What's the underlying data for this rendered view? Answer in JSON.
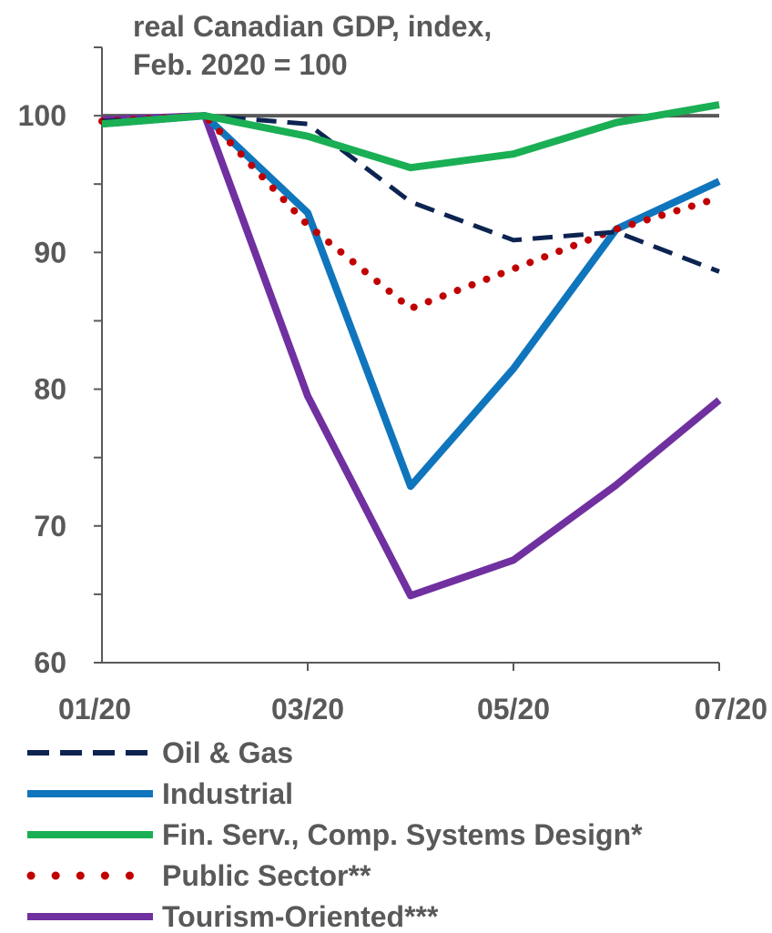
{
  "chart_data": {
    "type": "line",
    "title": "real Canadian GDP, index,",
    "subtitle": "Feb. 2020 = 100",
    "xlabel": "",
    "ylabel": "",
    "x": [
      "01/20",
      "02/20",
      "03/20",
      "04/20",
      "05/20",
      "06/20",
      "07/20"
    ],
    "x_tick_labels": [
      "01/20",
      "03/20",
      "05/20",
      "07/20"
    ],
    "y_tick_labels": [
      "60",
      "70",
      "80",
      "90",
      "100"
    ],
    "ylim": [
      60,
      105
    ],
    "y_major_ticks": [
      60,
      70,
      80,
      90,
      100
    ],
    "y_minor_ticks": [
      65,
      75,
      85,
      95,
      105
    ],
    "reference_line": {
      "y": 100,
      "color": "#595959"
    },
    "grid": false,
    "legend_position": "bottom",
    "series": [
      {
        "name": "Oil & Gas",
        "style": "dashed",
        "color": "#0d2451",
        "values": [
          99.6,
          100,
          99.4,
          93.7,
          90.9,
          91.5,
          88.6
        ]
      },
      {
        "name": "Industrial",
        "style": "solid",
        "color": "#0f75bc",
        "values": [
          99.4,
          100,
          92.9,
          72.9,
          81.5,
          91.7,
          95.2
        ]
      },
      {
        "name": "Fin. Serv., Comp. Systems Design*",
        "style": "solid",
        "color": "#1aaf54",
        "values": [
          99.4,
          100,
          98.5,
          96.2,
          97.2,
          99.5,
          100.8
        ]
      },
      {
        "name": "Public Sector**",
        "style": "dotted",
        "color": "#c00000",
        "values": [
          99.6,
          100,
          92.0,
          85.9,
          88.8,
          91.7,
          94.0
        ]
      },
      {
        "name": "Tourism-Oriented***",
        "style": "solid",
        "color": "#7030a0",
        "values": [
          99.7,
          100,
          79.5,
          64.9,
          67.5,
          73.0,
          79.2
        ]
      }
    ]
  }
}
